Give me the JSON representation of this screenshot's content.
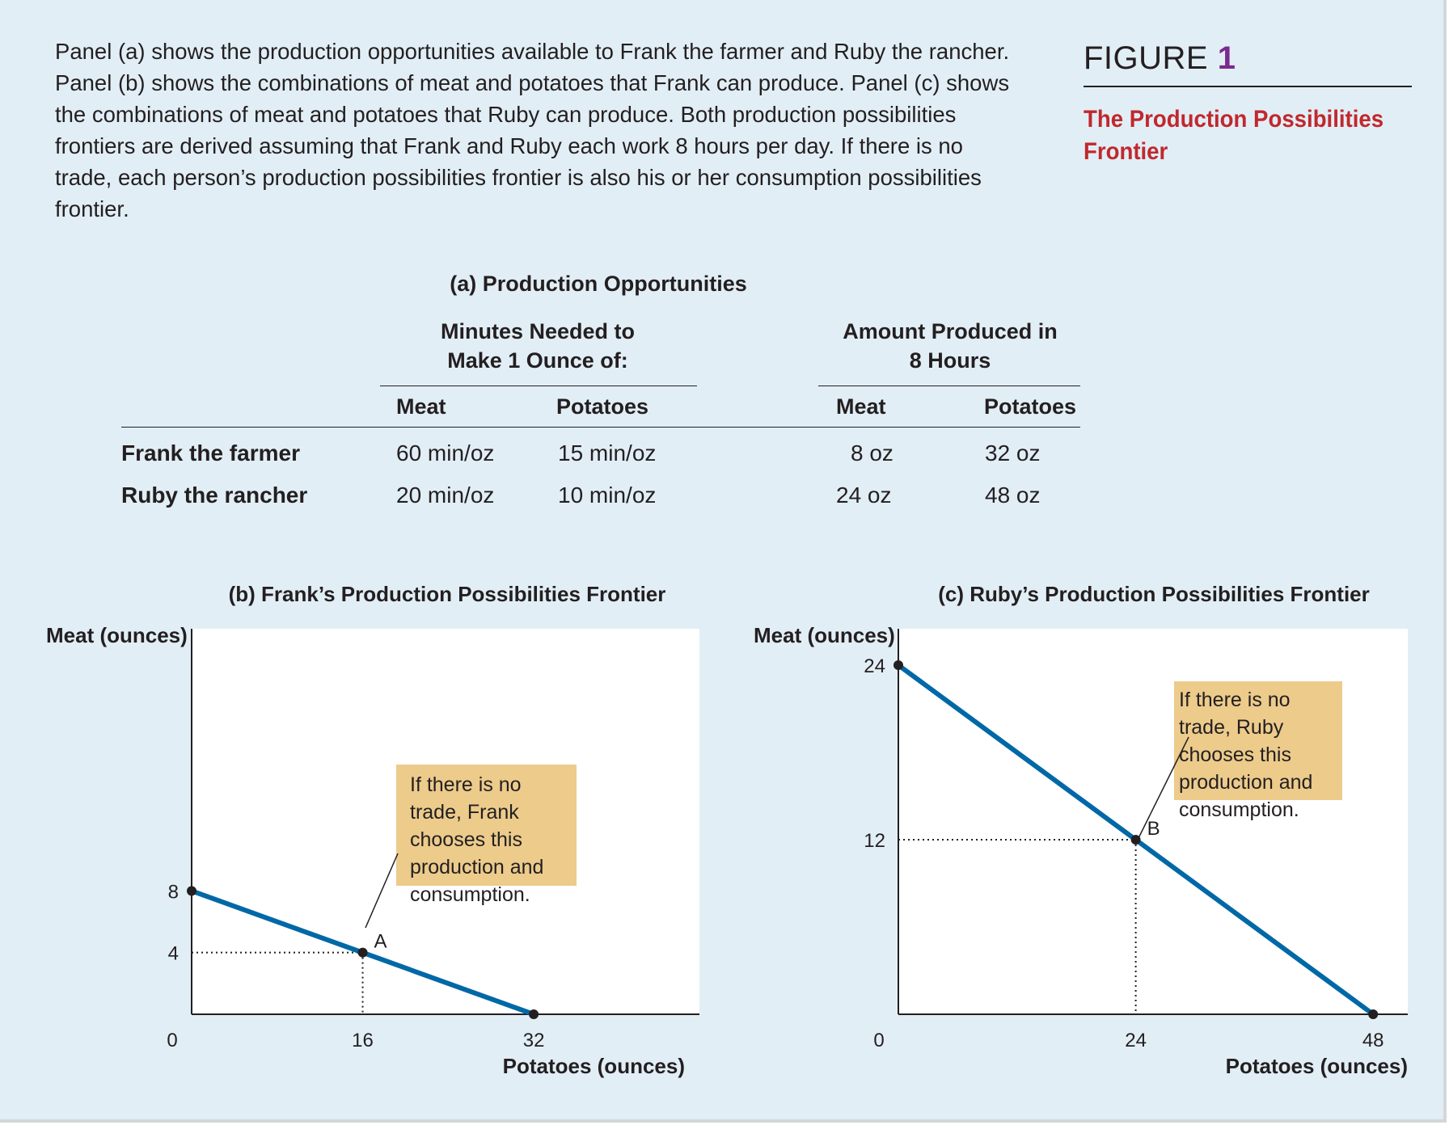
{
  "intro_text": "Panel (a) shows the production opportunities available to Frank the farmer and Ruby the rancher. Panel (b) shows the combinations of meat and potatoes that Frank can produce. Panel (c) shows the combinations of meat and potatoes that Ruby can produce. Both production possibilities frontiers are derived assuming that Frank and Ruby each work 8 hours per day. If there is no trade, each person’s production possibilities frontier is also his or her consumption possibilities frontier.",
  "figure": {
    "label": "FIGURE",
    "number": "1",
    "title": "The Production Possibilities Frontier"
  },
  "colors": {
    "background": "#e2eef6",
    "frontier_line": "#0068a6",
    "callout_fill": "#eccb8b",
    "title_red": "#c0282d",
    "figure_number": "#7a2a8c"
  },
  "chart_data": [
    {
      "type": "table",
      "title": "(a) Production Opportunities",
      "group_headers": [
        "Minutes Needed to Make 1 Ounce of:",
        "Amount Produced in 8 Hours"
      ],
      "columns": [
        "Meat",
        "Potatoes",
        "Meat",
        "Potatoes"
      ],
      "rows": [
        {
          "label": "Frank the farmer",
          "cells": [
            "60 min/oz",
            "15 min/oz",
            "8 oz",
            "32 oz"
          ]
        },
        {
          "label": "Ruby the rancher",
          "cells": [
            "20 min/oz",
            "10 min/oz",
            "24 oz",
            "48 oz"
          ]
        }
      ]
    },
    {
      "type": "line",
      "title": "(b) Frank’s Production Possibilities Frontier",
      "xlabel": "Potatoes (ounces)",
      "ylabel": "Meat (ounces)",
      "xlim": [
        0,
        47.5
      ],
      "ylim": [
        0,
        25
      ],
      "xticks": [
        "0",
        "16",
        "32"
      ],
      "yticks": [
        "8",
        "4"
      ],
      "series": [
        {
          "x": [
            0,
            32
          ],
          "y": [
            8,
            0
          ]
        }
      ],
      "endpoints": [
        {
          "x": 0,
          "y": 8
        },
        {
          "x": 32,
          "y": 0
        }
      ],
      "highlight": {
        "label": "A",
        "x": 16,
        "y": 4
      },
      "callout": "If there is no trade, Frank chooses this production and consumption."
    },
    {
      "type": "line",
      "title": "(c) Ruby’s Production Possibilities Frontier",
      "xlabel": "Potatoes (ounces)",
      "ylabel": "Meat (ounces)",
      "xlim": [
        0,
        51.5
      ],
      "ylim": [
        0,
        26.5
      ],
      "xticks": [
        "0",
        "24",
        "48"
      ],
      "yticks": [
        "24",
        "12"
      ],
      "series": [
        {
          "x": [
            0,
            48
          ],
          "y": [
            24,
            0
          ]
        }
      ],
      "endpoints": [
        {
          "x": 0,
          "y": 24
        },
        {
          "x": 48,
          "y": 0
        }
      ],
      "highlight": {
        "label": "B",
        "x": 24,
        "y": 12
      },
      "callout": "If there is no trade, Ruby chooses this production and consumption."
    }
  ]
}
